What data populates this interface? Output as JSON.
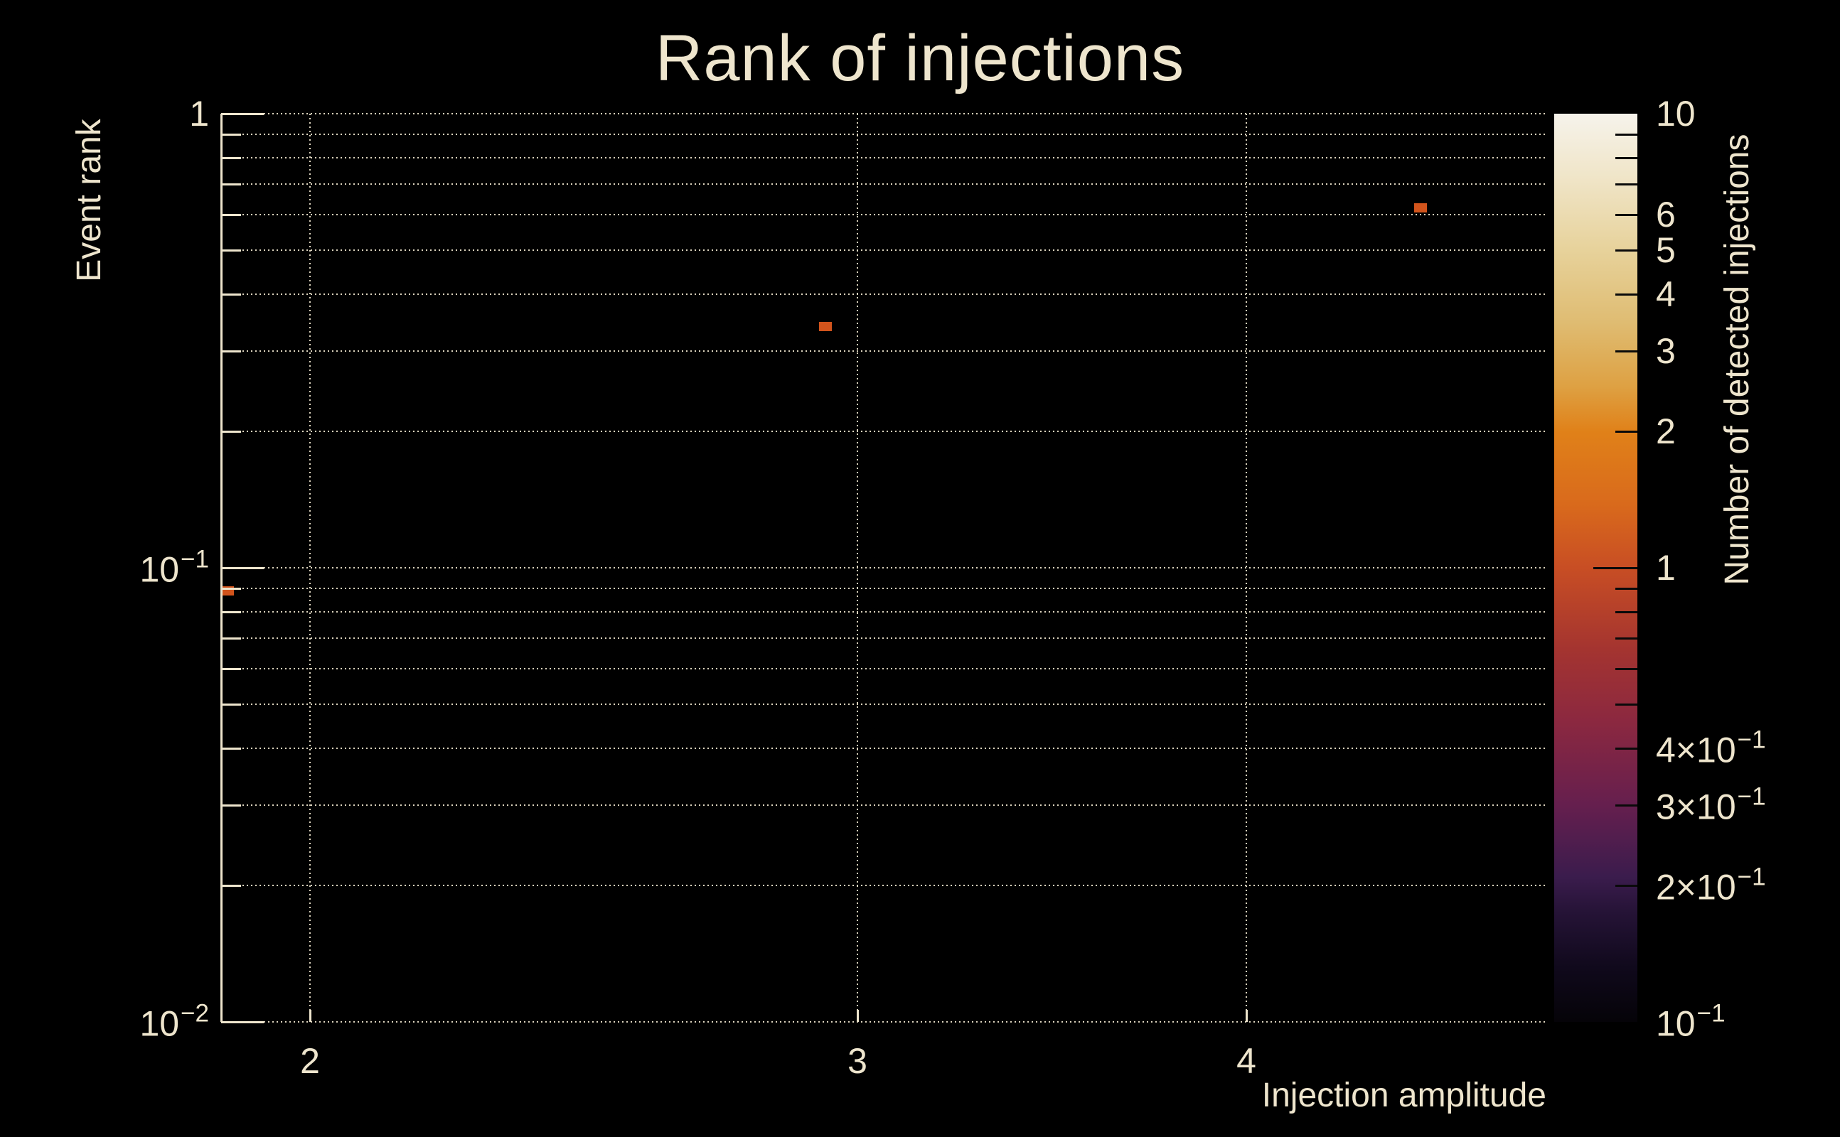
{
  "figure": {
    "background": "#000000",
    "text_color": "#EEE5CD",
    "grid_color": "#EEE5CD",
    "title": "Rank of injections"
  },
  "chart_data": {
    "type": "scatter",
    "title": "Rank of injections",
    "xlabel": "Injection amplitude",
    "ylabel": "Event rank",
    "x_scale": "log",
    "x_range": [
      1.873,
      4.995
    ],
    "y_scale": "log",
    "y_range": [
      0.01,
      1.0
    ],
    "grid": "dotted",
    "legend": "none",
    "x_axis": {
      "ticks": [
        {
          "v": 2,
          "label": {
            "t": "2"
          }
        },
        {
          "v": 3,
          "label": {
            "t": "3"
          }
        },
        {
          "v": 4,
          "label": {
            "t": "4"
          }
        }
      ]
    },
    "y_axis": {
      "major": [
        {
          "v": 1,
          "label": {
            "t": "1"
          }
        },
        {
          "v": 0.1,
          "label": {
            "t": "10",
            "e": "−1"
          }
        },
        {
          "v": 0.01,
          "label": {
            "t": "10",
            "e": "−2"
          }
        }
      ],
      "minor": [
        0.9,
        0.8,
        0.7,
        0.6,
        0.5,
        0.4,
        0.3,
        0.2,
        0.09,
        0.08,
        0.07,
        0.06,
        0.05,
        0.04,
        0.03,
        0.02
      ]
    },
    "points": [
      {
        "x": 1.88,
        "y": 0.089,
        "color": "#D2541C"
      },
      {
        "x": 2.93,
        "y": 0.34,
        "color": "#D2541C"
      },
      {
        "x": 4.55,
        "y": 0.62,
        "color": "#D2541C"
      }
    ],
    "marker": {
      "w": 18,
      "h": 13
    },
    "colorbar": {
      "label": "Number of detected injections",
      "scale": "log",
      "range": [
        0.1,
        10
      ],
      "tick_labels": [
        {
          "v": 10,
          "t": "10"
        },
        {
          "v": 6,
          "t": "6"
        },
        {
          "v": 5,
          "t": "5"
        },
        {
          "v": 4,
          "t": "4"
        },
        {
          "v": 3,
          "t": "3"
        },
        {
          "v": 2,
          "t": "2"
        },
        {
          "v": 1,
          "t": "1"
        },
        {
          "v": 0.4,
          "t": "4×10",
          "e": "−1"
        },
        {
          "v": 0.3,
          "t": "3×10",
          "e": "−1"
        },
        {
          "v": 0.2,
          "t": "2×10",
          "e": "−1"
        },
        {
          "v": 0.1,
          "t": "10",
          "e": "−1"
        }
      ],
      "major_ticks": [
        1
      ],
      "minor_ticks": [
        9,
        8,
        7,
        6,
        5,
        4,
        3,
        2,
        0.9,
        0.8,
        0.7,
        0.6,
        0.5,
        0.4,
        0.3,
        0.2
      ],
      "gradient": [
        {
          "p": 0,
          "c": "#050308"
        },
        {
          "p": 6,
          "c": "#10091C"
        },
        {
          "p": 12,
          "c": "#251336"
        },
        {
          "p": 16,
          "c": "#3B1C4D"
        },
        {
          "p": 24,
          "c": "#661F4E"
        },
        {
          "p": 33,
          "c": "#8B2840"
        },
        {
          "p": 41,
          "c": "#A43430"
        },
        {
          "p": 50,
          "c": "#C84E24"
        },
        {
          "p": 57,
          "c": "#D96A1C"
        },
        {
          "p": 65,
          "c": "#E08119"
        },
        {
          "p": 70,
          "c": "#DEA143"
        },
        {
          "p": 77,
          "c": "#DFBC72"
        },
        {
          "p": 85,
          "c": "#E7D29B"
        },
        {
          "p": 93,
          "c": "#F0E5C8"
        },
        {
          "p": 100,
          "c": "#F6F3EB"
        }
      ]
    }
  }
}
